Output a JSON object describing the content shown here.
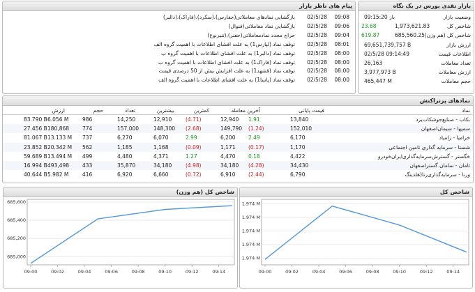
{
  "market": {
    "title": "بازار نقدی بورس در یک نگاه",
    "rows": [
      {
        "label": "وضعیت بازار",
        "value": "باز 09:15:20"
      },
      {
        "label": "شاخص کل",
        "value": "1,973,621.83",
        "change": "23.68"
      },
      {
        "label": "شاخص کل (هم وزن)",
        "value": "685,560.25",
        "change": "619.87"
      },
      {
        "label": "ارزش بازار",
        "value": "69,651,739,757 B"
      },
      {
        "label": "اطلاعات قیمت",
        "value": "02/5/28 09:14:49"
      },
      {
        "label": "تعداد معاملات",
        "value": "26,163"
      },
      {
        "label": "ارزش معاملات",
        "value": "3,977,973 B"
      },
      {
        "label": "حجم معاملات",
        "value": "465,447 M"
      }
    ]
  },
  "messages": {
    "title": "پیام های ناظر بازار",
    "rows": [
      {
        "date": "02/5/28",
        "time": "09:08",
        "text": "بازگشایی نمادهای معاملاتی(حفارس)،(سکرد)،(فاراک)،(دالبر)"
      },
      {
        "date": "02/5/28",
        "time": "09:06",
        "text": "بازگشایی نماد معاملاتی(فنوال)"
      },
      {
        "date": "02/5/28",
        "time": "09:04",
        "text": "حراج مجدد نمادمعاملاتی(حفنر)،(تنیرنوع)"
      },
      {
        "date": "02/5/28",
        "time": "08:01",
        "text": "توقف نماد (لپارس1) به علت افشای اطلاعات با اهمیت گروه الف"
      },
      {
        "date": "02/5/28",
        "time": "08:00",
        "text": "توقف نماد (دالبر1) به علت افشای اطلاعات با اهمیت گروه ب"
      },
      {
        "date": "02/5/28",
        "time": "08:00",
        "text": "توقف نماد (فاراک1) به علت افشای اطلاعات با اهمیت گروه ب"
      },
      {
        "date": "02/5/28",
        "time": "08:00",
        "text": "توقف نماد (قشهد1) به علت افزایش بیش از 50 درصدی قیمت"
      },
      {
        "date": "02/5/28",
        "time": "08:00",
        "text": "توقف نماد (پاسا1) به علت افشای اطلاعات با اهمیت گروه الف"
      }
    ]
  },
  "table": {
    "title": "نمادهای پرتراکنش",
    "columns": [
      "نماد",
      "قیمت پایانی",
      "آخرین معامله",
      "کمترین",
      "بیشترین",
      "تعداد",
      "حجم",
      "ارزش"
    ],
    "rows": [
      [
        "بکاب - صنایع‌جوشکاب‌یزد",
        "13,840",
        "1.91",
        "12,940",
        "(4.71)",
        "12,910",
        "14,250",
        "986",
        "6.056 M",
        "83.790 B"
      ],
      [
        "سمپها - سیمان‌اصفهان",
        "152,010",
        "(1.24)",
        "149,790",
        "(2.68)",
        "148,300",
        "157,000",
        "774",
        "180,868",
        "27.456 B"
      ],
      [
        "خزامیا - زامیاد",
        "6,170",
        "2.49",
        "6,200",
        "2.99",
        "6,070",
        "6,270",
        "737",
        "13.133 M",
        "81.067 B"
      ],
      [
        "شستا - سرمایه گذاری تامین اجتماعی",
        "1,170",
        "(0.17)",
        "1,171",
        "(0.09)",
        "1,168",
        "1,185",
        "562",
        "20.342 M",
        "23.852 B"
      ],
      [
        "خگستر - گسترش‌سرمایه‌گذاری‌ایران‌خودرو",
        "4,422",
        "0.18",
        "4,470",
        "1.27",
        "4,371",
        "4,480",
        "499",
        "13.494 M",
        "59.689 B"
      ],
      [
        "ثامان - سامان گستراصفهان",
        "34,430",
        "(4.28)",
        "34,180",
        "(4.98)",
        "34,180",
        "35,870",
        "433",
        "493,498",
        "16.994 B"
      ],
      [
        "ورنا - سرمایه‌گذاری‌رنا(هلدینگ",
        "6,790",
        "(2.44)",
        "6,910",
        "(0.72)",
        "6,660",
        "6,920",
        "416",
        "5.982 M",
        "40.644 B"
      ]
    ]
  },
  "chart_data": [
    {
      "type": "line",
      "title": "شاخص کل (هم وزن)",
      "x": [
        "09:00",
        "09:05",
        "09:10",
        "09:15"
      ],
      "series": [
        {
          "name": "شاخص کل (هم وزن)",
          "color": "#5b9bd5",
          "values": [
            684926,
            685415,
            685519,
            685560
          ]
        }
      ],
      "xlim": [
        "09:00",
        "09:15"
      ],
      "xticks": [
        "09:00",
        "09:02",
        "09:04",
        "09:06",
        "09:08",
        "09:10",
        "09:12",
        "09:14"
      ],
      "ylim": [
        684910,
        685630
      ],
      "yticks": [
        {
          "value": 685000,
          "label": "685,000"
        },
        {
          "value": 685200,
          "label": "685,200"
        },
        {
          "value": 685400,
          "label": "685,400"
        },
        {
          "value": 685600,
          "label": "685,600"
        }
      ],
      "grid": true
    },
    {
      "type": "line",
      "title": "شاخص کل",
      "x": [
        "09:00",
        "09:05",
        "09:10",
        "09:15"
      ],
      "series": [
        {
          "name": "شاخص کل",
          "color": "#5b9bd5",
          "values": [
            1973595,
            1973792,
            1973722,
            1973622
          ]
        }
      ],
      "xlim": [
        "09:00",
        "09:15"
      ],
      "xticks": [
        "09:00",
        "09:02",
        "09:04",
        "09:06",
        "09:08",
        "09:10",
        "09:12",
        "09:14"
      ],
      "ylim": [
        1973575,
        1973817
      ],
      "yticks": [
        {
          "value": 1973600,
          "label": "1.974 M"
        },
        {
          "value": 1973650,
          "label": "1.974 M"
        },
        {
          "value": 1973700,
          "label": "1.974 M"
        },
        {
          "value": 1973750,
          "label": "1.974 M"
        },
        {
          "value": 1973800,
          "label": "1.974 M"
        }
      ],
      "grid": true
    }
  ]
}
